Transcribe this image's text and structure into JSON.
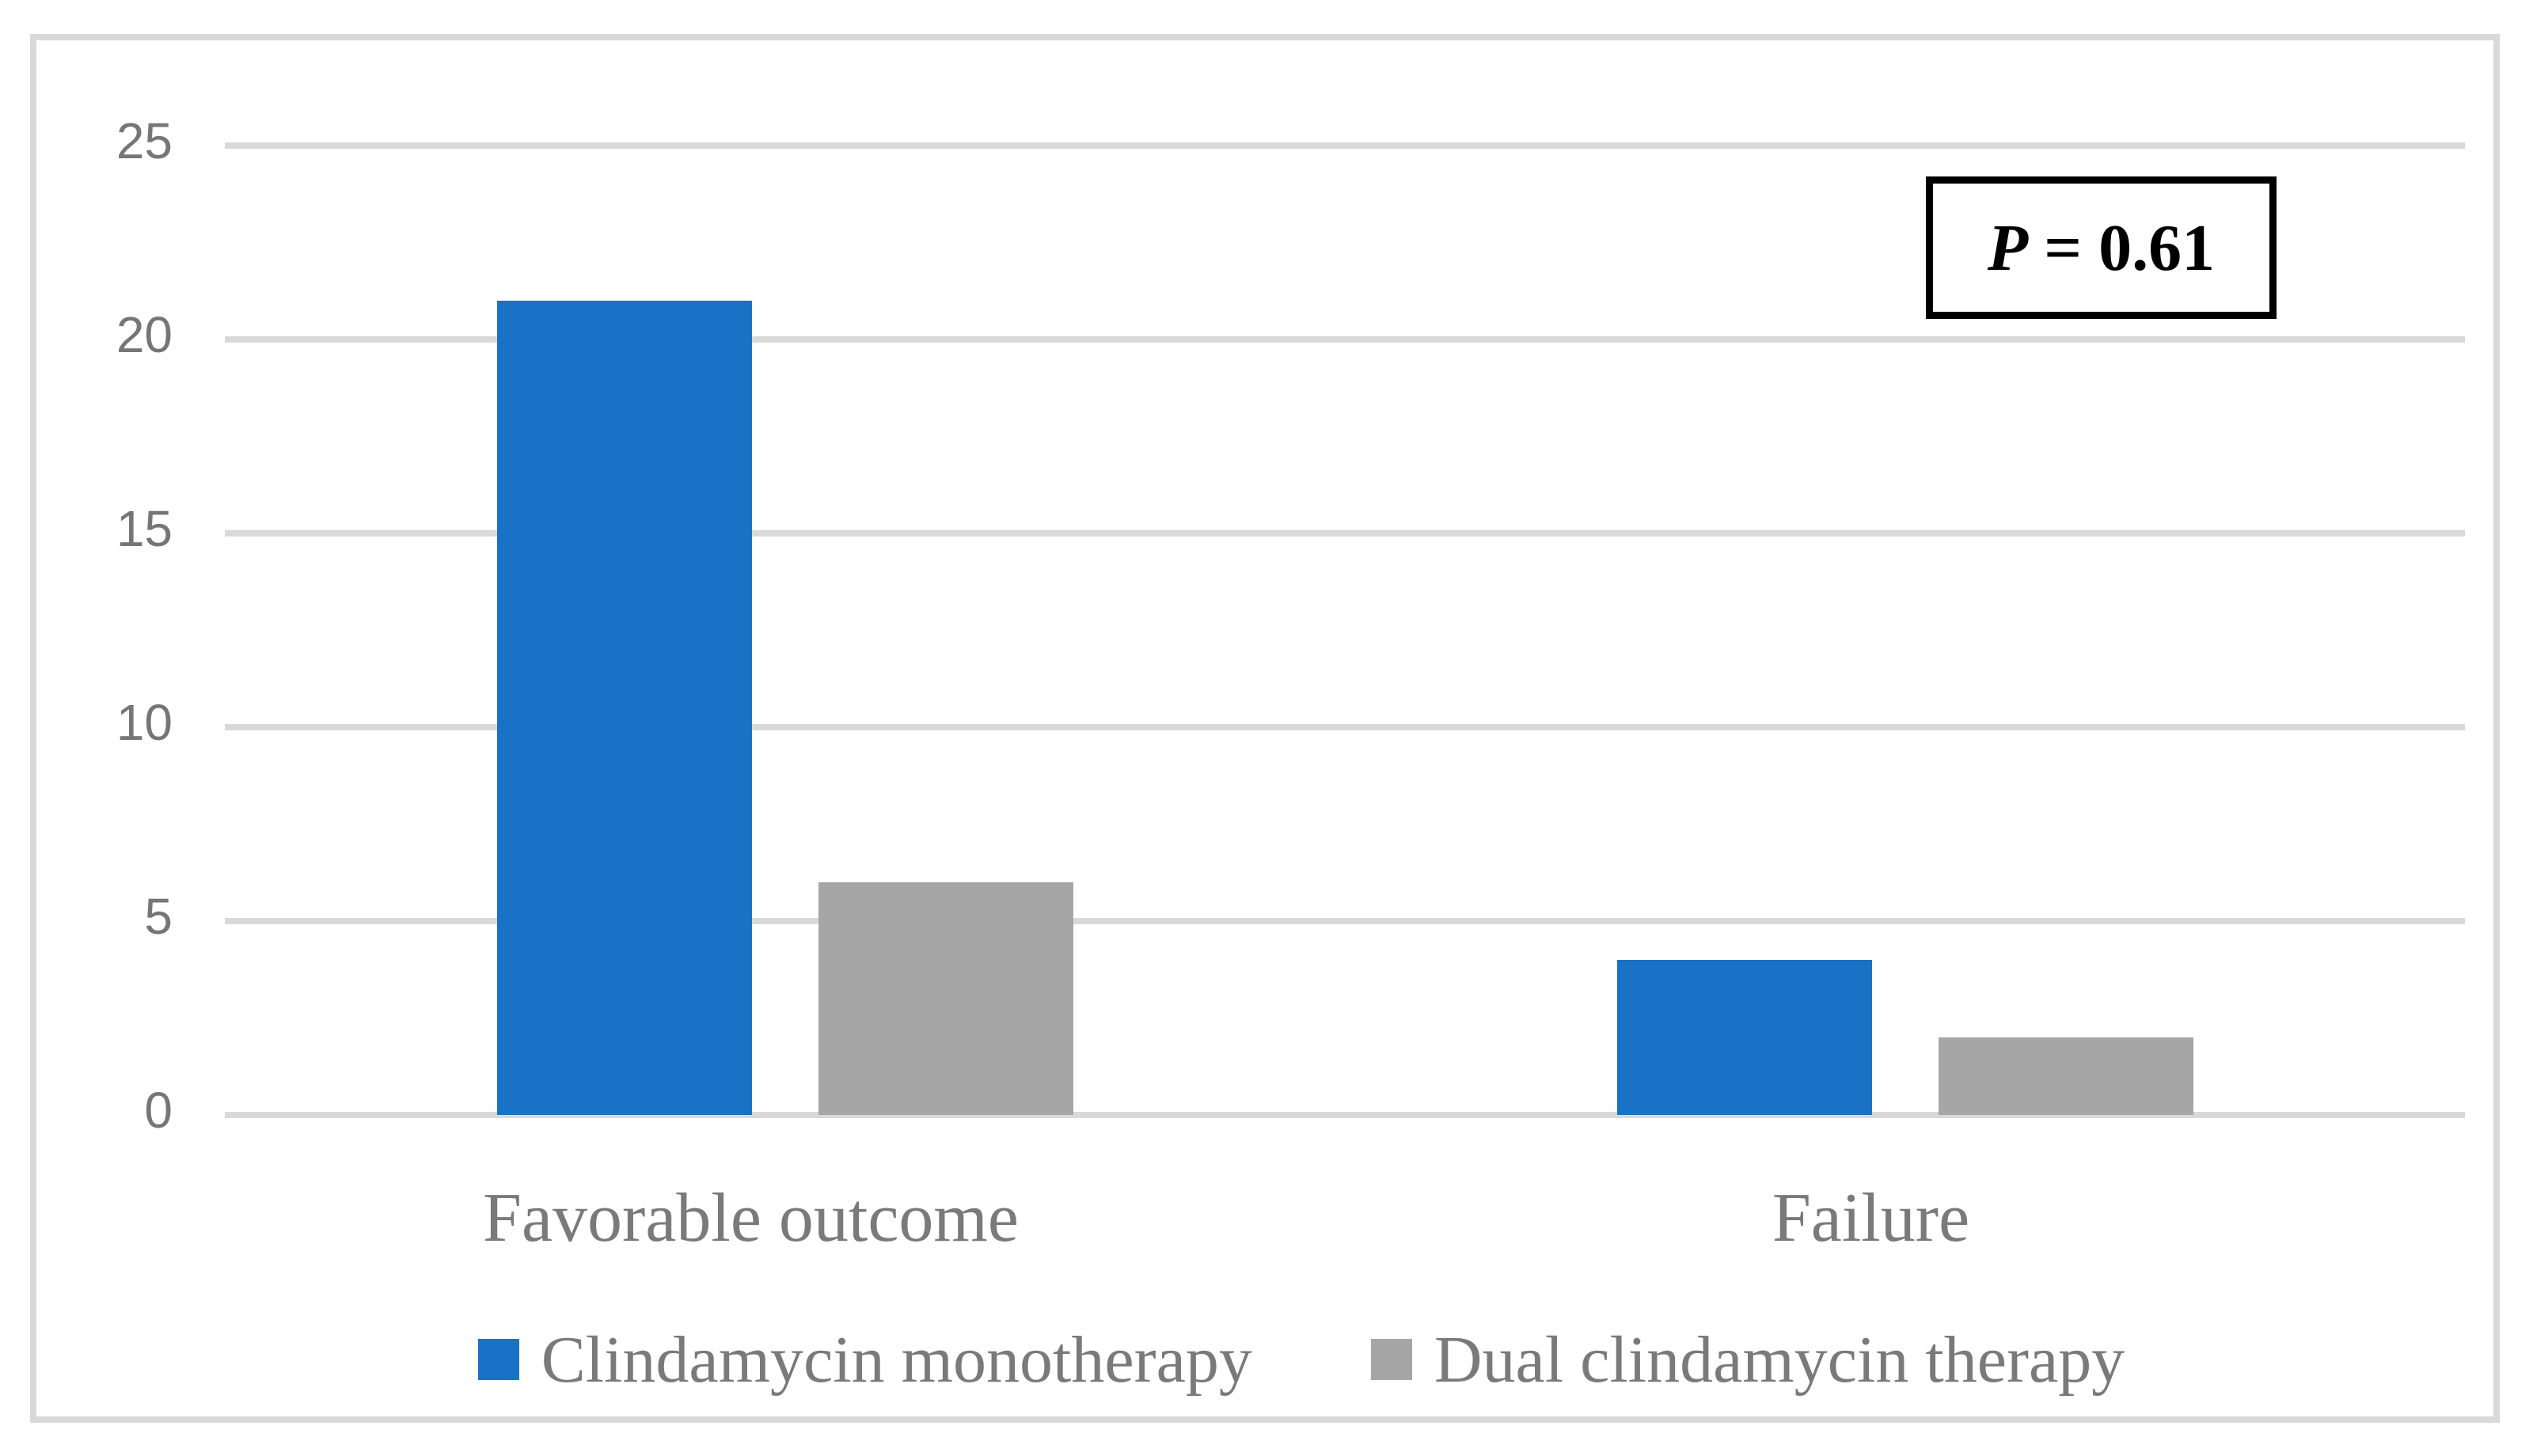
{
  "figure": {
    "annotation": {
      "p_symbol": "P",
      "p_rest": "= 0.61"
    }
  },
  "colors": {
    "series1_blue": "#1A72C6",
    "series2_gray": "#A6A6A6",
    "gridline": "#D9D9D9",
    "frame_border": "#D9D9D9",
    "tick_text": "#767676",
    "label_text": "#7A7A7A",
    "annotation_text": "#000000",
    "annotation_border": "#000000",
    "background": "#FFFFFF"
  },
  "chart_data": {
    "type": "bar",
    "categories": [
      "Favorable outcome",
      "Failure"
    ],
    "series": [
      {
        "name": "Clindamycin monotherapy",
        "color": "#1A72C6",
        "values": [
          21,
          4
        ]
      },
      {
        "name": "Dual clindamycin therapy",
        "color": "#A6A6A6",
        "values": [
          6,
          2
        ]
      }
    ],
    "title": "",
    "xlabel": "",
    "ylabel": "",
    "ylim": [
      0,
      25
    ],
    "yticks": [
      0,
      5,
      10,
      15,
      20,
      25
    ],
    "grid": true,
    "legend_position": "bottom",
    "annotation": "P = 0.61"
  }
}
